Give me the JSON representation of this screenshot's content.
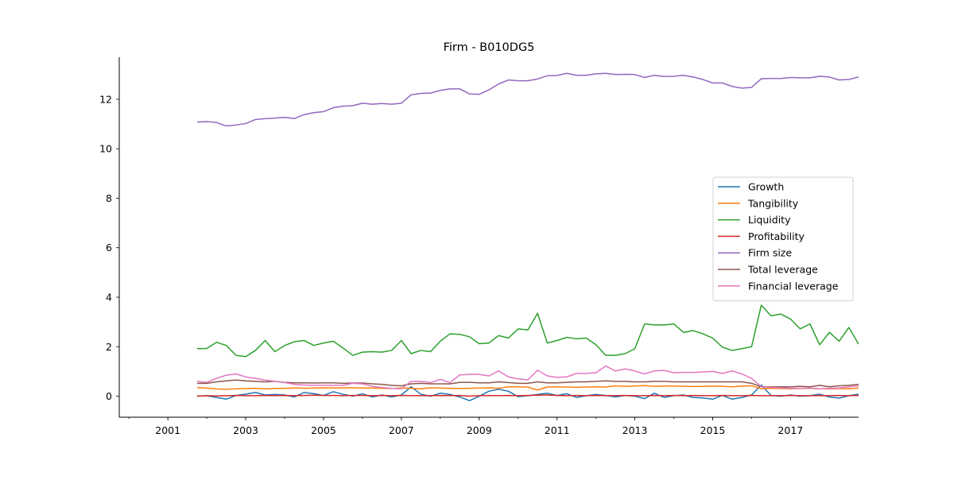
{
  "chart_data": {
    "type": "line",
    "title": "Firm - B010DG5",
    "xlabel": "",
    "ylabel": "",
    "xlim": [
      1999.75,
      2018.75
    ],
    "ylim": [
      -0.85,
      13.7
    ],
    "x_ticks": [
      2001,
      2003,
      2005,
      2007,
      2009,
      2011,
      2013,
      2015,
      2017
    ],
    "x_tick_labels": [
      "2001",
      "2003",
      "2005",
      "2007",
      "2009",
      "2011",
      "2013",
      "2015",
      "2017"
    ],
    "y_ticks": [
      0,
      2,
      4,
      6,
      8,
      10,
      12
    ],
    "y_tick_labels": [
      "0",
      "2",
      "4",
      "6",
      "8",
      "10",
      "12"
    ],
    "grid": false,
    "legend": "center-right",
    "x": [
      2001.75,
      2002.0,
      2002.25,
      2002.5,
      2002.75,
      2003.0,
      2003.25,
      2003.5,
      2003.75,
      2004.0,
      2004.25,
      2004.5,
      2004.75,
      2005.0,
      2005.25,
      2005.5,
      2005.75,
      2006.0,
      2006.25,
      2006.5,
      2006.75,
      2007.0,
      2007.25,
      2007.5,
      2007.75,
      2008.0,
      2008.25,
      2008.5,
      2008.75,
      2009.0,
      2009.25,
      2009.5,
      2009.75,
      2010.0,
      2010.25,
      2010.5,
      2010.75,
      2011.0,
      2011.25,
      2011.5,
      2011.75,
      2012.0,
      2012.25,
      2012.5,
      2012.75,
      2013.0,
      2013.25,
      2013.5,
      2013.75,
      2014.0,
      2014.25,
      2014.5,
      2014.75,
      2015.0,
      2015.25,
      2015.5,
      2015.75,
      2016.0,
      2016.25,
      2016.5,
      2016.75,
      2017.0,
      2017.25,
      2017.5,
      2017.75,
      2018.0,
      2018.25,
      2018.5,
      2018.75
    ],
    "series": [
      {
        "name": "Growth",
        "color": "#1f77b4",
        "values": [
          0.0,
          0.02,
          -0.05,
          -0.12,
          0.03,
          0.08,
          0.15,
          0.05,
          0.07,
          0.05,
          -0.03,
          0.15,
          0.1,
          0.03,
          0.18,
          0.08,
          0.0,
          0.1,
          -0.03,
          0.05,
          -0.03,
          0.05,
          0.38,
          0.08,
          0.0,
          0.12,
          0.07,
          -0.03,
          -0.18,
          0.0,
          0.2,
          0.28,
          0.2,
          -0.02,
          0.02,
          0.07,
          0.12,
          0.03,
          0.1,
          -0.05,
          0.02,
          0.07,
          0.03,
          -0.03,
          0.03,
          0.0,
          -0.1,
          0.12,
          -0.05,
          0.02,
          0.05,
          -0.05,
          -0.07,
          -0.12,
          0.03,
          -0.12,
          -0.05,
          0.05,
          0.45,
          0.03,
          0.0,
          0.05,
          0.0,
          0.02,
          0.08,
          -0.03,
          -0.08,
          0.02,
          0.08
        ]
      },
      {
        "name": "Tangibility",
        "color": "#ff7f0e",
        "values": [
          0.35,
          0.33,
          0.29,
          0.28,
          0.3,
          0.31,
          0.32,
          0.3,
          0.31,
          0.32,
          0.33,
          0.32,
          0.33,
          0.34,
          0.33,
          0.34,
          0.34,
          0.33,
          0.33,
          0.32,
          0.31,
          0.33,
          0.32,
          0.3,
          0.34,
          0.33,
          0.32,
          0.31,
          0.32,
          0.33,
          0.34,
          0.32,
          0.38,
          0.38,
          0.37,
          0.25,
          0.37,
          0.38,
          0.37,
          0.36,
          0.37,
          0.38,
          0.37,
          0.42,
          0.4,
          0.41,
          0.43,
          0.4,
          0.41,
          0.41,
          0.4,
          0.39,
          0.4,
          0.41,
          0.4,
          0.38,
          0.41,
          0.42,
          0.3,
          0.32,
          0.31,
          0.3,
          0.31,
          0.32,
          0.3,
          0.3,
          0.31,
          0.3,
          0.33
        ]
      },
      {
        "name": "Liquidity",
        "color": "#2ca02c",
        "values": [
          1.92,
          1.93,
          2.18,
          2.05,
          1.65,
          1.6,
          1.85,
          2.25,
          1.8,
          2.05,
          2.2,
          2.25,
          2.05,
          2.15,
          2.22,
          1.95,
          1.65,
          1.78,
          1.8,
          1.78,
          1.85,
          2.25,
          1.72,
          1.85,
          1.8,
          2.22,
          2.52,
          2.5,
          2.4,
          2.12,
          2.15,
          2.45,
          2.35,
          2.72,
          2.68,
          3.35,
          2.15,
          2.25,
          2.38,
          2.32,
          2.35,
          2.08,
          1.65,
          1.65,
          1.72,
          1.92,
          2.92,
          2.88,
          2.88,
          2.92,
          2.58,
          2.65,
          2.52,
          2.35,
          1.98,
          1.85,
          1.92,
          2.0,
          3.68,
          3.25,
          3.32,
          3.12,
          2.72,
          2.92,
          2.08,
          2.58,
          2.22,
          2.78,
          2.1
        ]
      },
      {
        "name": "Profitability",
        "color": "#d62728",
        "values": [
          0.0,
          0.02,
          0.01,
          0.02,
          0.03,
          0.02,
          0.02,
          0.03,
          0.02,
          0.03,
          0.02,
          0.03,
          0.04,
          0.03,
          0.03,
          0.02,
          0.03,
          0.03,
          0.02,
          0.03,
          0.02,
          0.03,
          0.02,
          0.02,
          0.02,
          0.03,
          0.02,
          0.03,
          0.0,
          0.02,
          0.03,
          0.02,
          0.03,
          0.02,
          0.03,
          0.04,
          0.05,
          0.03,
          0.02,
          0.03,
          0.02,
          0.03,
          0.02,
          0.02,
          0.03,
          0.02,
          0.02,
          0.03,
          0.02,
          0.03,
          0.02,
          0.03,
          0.02,
          0.02,
          0.03,
          0.02,
          0.02,
          0.03,
          0.02,
          0.02,
          0.02,
          0.03,
          0.02,
          0.02,
          0.02,
          0.02,
          0.03,
          0.02,
          0.03
        ]
      },
      {
        "name": "Firm size",
        "color": "#9467bd",
        "values": [
          11.08,
          11.1,
          11.06,
          10.92,
          10.96,
          11.02,
          11.18,
          11.22,
          11.24,
          11.27,
          11.22,
          11.38,
          11.46,
          11.5,
          11.66,
          11.72,
          11.74,
          11.84,
          11.8,
          11.83,
          11.8,
          11.84,
          12.18,
          12.24,
          12.25,
          12.36,
          12.42,
          12.42,
          12.22,
          12.2,
          12.38,
          12.62,
          12.78,
          12.75,
          12.75,
          12.82,
          12.95,
          12.96,
          13.05,
          12.97,
          12.97,
          13.03,
          13.05,
          13.0,
          13.01,
          13.0,
          12.88,
          12.97,
          12.92,
          12.93,
          12.97,
          12.9,
          12.8,
          12.66,
          12.66,
          12.52,
          12.45,
          12.48,
          12.83,
          12.84,
          12.84,
          12.88,
          12.87,
          12.87,
          12.93,
          12.9,
          12.78,
          12.8,
          12.9
        ]
      },
      {
        "name": "Total leverage",
        "color": "#8c564b",
        "values": [
          0.52,
          0.52,
          0.58,
          0.62,
          0.65,
          0.62,
          0.6,
          0.58,
          0.6,
          0.56,
          0.54,
          0.54,
          0.53,
          0.54,
          0.54,
          0.52,
          0.53,
          0.53,
          0.5,
          0.48,
          0.44,
          0.42,
          0.5,
          0.52,
          0.5,
          0.5,
          0.5,
          0.56,
          0.56,
          0.54,
          0.54,
          0.58,
          0.55,
          0.52,
          0.52,
          0.58,
          0.54,
          0.54,
          0.56,
          0.58,
          0.58,
          0.6,
          0.62,
          0.6,
          0.6,
          0.58,
          0.58,
          0.6,
          0.6,
          0.58,
          0.58,
          0.58,
          0.58,
          0.58,
          0.58,
          0.58,
          0.58,
          0.52,
          0.38,
          0.38,
          0.38,
          0.38,
          0.4,
          0.38,
          0.44,
          0.38,
          0.42,
          0.44,
          0.48
        ]
      },
      {
        "name": "Financial leverage",
        "color": "#e377c2",
        "values": [
          0.6,
          0.56,
          0.72,
          0.85,
          0.9,
          0.78,
          0.72,
          0.65,
          0.6,
          0.55,
          0.48,
          0.45,
          0.44,
          0.44,
          0.44,
          0.44,
          0.52,
          0.5,
          0.4,
          0.35,
          0.32,
          0.3,
          0.6,
          0.6,
          0.55,
          0.68,
          0.55,
          0.86,
          0.88,
          0.88,
          0.82,
          1.02,
          0.78,
          0.7,
          0.66,
          1.05,
          0.82,
          0.76,
          0.78,
          0.92,
          0.92,
          0.95,
          1.22,
          1.02,
          1.1,
          1.02,
          0.9,
          1.02,
          1.04,
          0.95,
          0.96,
          0.96,
          0.98,
          1.0,
          0.92,
          1.02,
          0.9,
          0.72,
          0.38,
          0.36,
          0.34,
          0.32,
          0.32,
          0.33,
          0.3,
          0.32,
          0.33,
          0.38,
          0.42
        ]
      }
    ]
  }
}
